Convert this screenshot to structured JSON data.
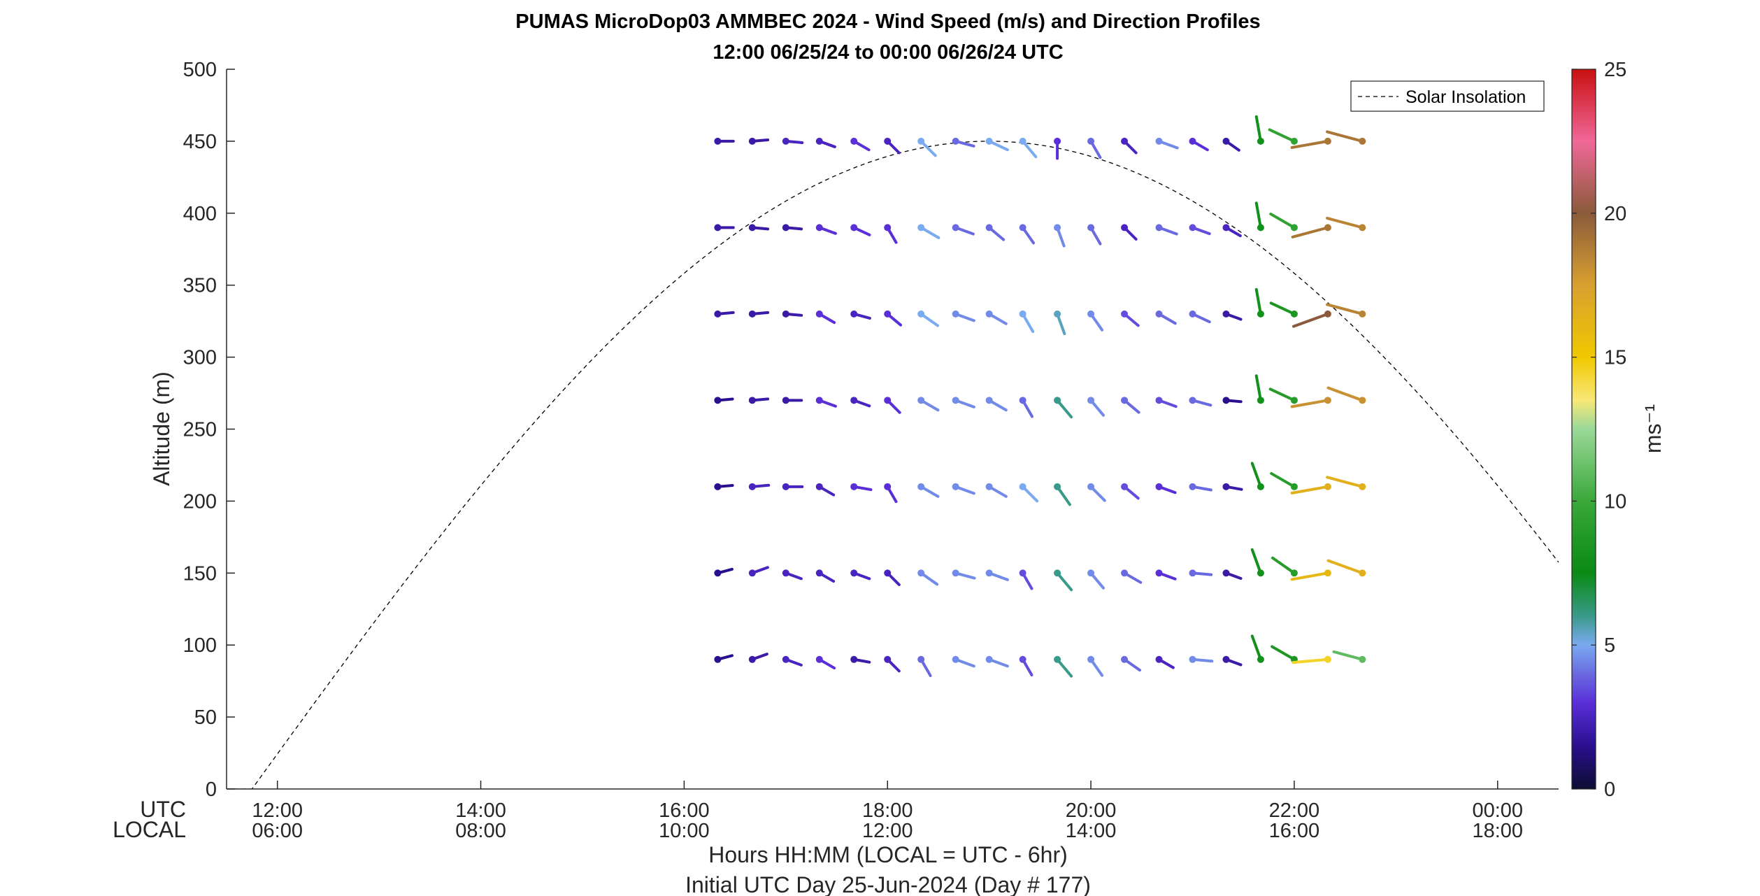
{
  "chart_data": {
    "type": "wind-profile",
    "title": "PUMAS MicroDop03 AMMBEC 2024 - Wind Speed (m/s) and Direction Profiles",
    "subtitle": "12:00 06/25/24 to 00:00 06/26/24  UTC",
    "ylabel": "Altitude (m)",
    "ylim": [
      0,
      500
    ],
    "yticks": [
      0,
      50,
      100,
      150,
      200,
      250,
      300,
      350,
      400,
      450,
      500
    ],
    "xlim_hours": [
      11.5,
      24.6
    ],
    "xticks": [
      {
        "hour": 12,
        "utc": "12:00",
        "local": "06:00"
      },
      {
        "hour": 14,
        "utc": "14:00",
        "local": "08:00"
      },
      {
        "hour": 16,
        "utc": "16:00",
        "local": "10:00"
      },
      {
        "hour": 18,
        "utc": "18:00",
        "local": "12:00"
      },
      {
        "hour": 20,
        "utc": "20:00",
        "local": "14:00"
      },
      {
        "hour": 22,
        "utc": "22:00",
        "local": "16:00"
      },
      {
        "hour": 24,
        "utc": "00:00",
        "local": "18:00"
      }
    ],
    "row_label_utc": "UTC",
    "row_label_local": "LOCAL",
    "xlabel": "Hours HH:MM  (LOCAL = UTC - 6hr)",
    "xlabel2": "Initial UTC Day 25-Jun-2024 (Day # 177)",
    "legend": {
      "label": "Solar Insolation",
      "placement": "top-right"
    },
    "solar_insolation_curve": {
      "start_hour": 11.75,
      "peak_hour": 19.0,
      "peak_altitude": 450
    },
    "colorbar": {
      "label": "ms⁻¹",
      "range": [
        0,
        25
      ],
      "ticks": [
        0,
        5,
        10,
        15,
        20,
        25
      ],
      "stops": [
        {
          "v": 0,
          "c": "#0d0d33"
        },
        {
          "v": 1.5,
          "c": "#2a0f8f"
        },
        {
          "v": 3,
          "c": "#5a2fd8"
        },
        {
          "v": 4,
          "c": "#6a6ae0"
        },
        {
          "v": 5,
          "c": "#7aaaf0"
        },
        {
          "v": 6,
          "c": "#3a9a8a"
        },
        {
          "v": 7.5,
          "c": "#0a8a14"
        },
        {
          "v": 10,
          "c": "#3aa83a"
        },
        {
          "v": 12.5,
          "c": "#9ad898"
        },
        {
          "v": 13.5,
          "c": "#f8e878"
        },
        {
          "v": 15,
          "c": "#f0c800"
        },
        {
          "v": 17.5,
          "c": "#d8a030"
        },
        {
          "v": 20,
          "c": "#8a5a3a"
        },
        {
          "v": 22.5,
          "c": "#f06898"
        },
        {
          "v": 25,
          "c": "#c81010"
        }
      ]
    },
    "altitudes": [
      90,
      150,
      210,
      270,
      330,
      390,
      450
    ],
    "profiles": [
      {
        "hour": 16.33,
        "speed": [
          1.5,
          1.5,
          1.5,
          1.5,
          2.0,
          2.0,
          2.0
        ],
        "dir_deg": [
          255,
          255,
          265,
          265,
          265,
          270,
          270
        ]
      },
      {
        "hour": 16.67,
        "speed": [
          2.0,
          2.5,
          2.5,
          2.0,
          2.0,
          2.0,
          2.0
        ],
        "dir_deg": [
          250,
          250,
          265,
          265,
          265,
          275,
          265
        ]
      },
      {
        "hour": 17.0,
        "speed": [
          2.5,
          2.5,
          2.5,
          2.0,
          2.0,
          2.0,
          2.5
        ],
        "dir_deg": [
          290,
          290,
          270,
          270,
          275,
          275,
          275
        ]
      },
      {
        "hour": 17.33,
        "speed": [
          3.0,
          2.5,
          2.5,
          3.0,
          3.0,
          3.0,
          2.5
        ],
        "dir_deg": [
          300,
          300,
          300,
          290,
          300,
          290,
          290
        ]
      },
      {
        "hour": 17.67,
        "speed": [
          2.0,
          2.5,
          3.0,
          2.5,
          2.5,
          3.0,
          3.0
        ],
        "dir_deg": [
          280,
          290,
          280,
          290,
          285,
          295,
          300
        ]
      },
      {
        "hour": 18.0,
        "speed": [
          2.5,
          2.5,
          3.0,
          3.0,
          3.0,
          3.0,
          2.5
        ],
        "dir_deg": [
          315,
          315,
          330,
          315,
          310,
          330,
          315
        ]
      },
      {
        "hour": 18.33,
        "speed": [
          4.0,
          4.5,
          4.5,
          4.5,
          5.0,
          5.0,
          5.0
        ],
        "dir_deg": [
          330,
          305,
          300,
          300,
          305,
          300,
          315
        ]
      },
      {
        "hour": 18.67,
        "speed": [
          4.5,
          4.5,
          4.5,
          4.5,
          4.5,
          4.0,
          4.0
        ],
        "dir_deg": [
          290,
          285,
          290,
          290,
          290,
          290,
          285
        ]
      },
      {
        "hour": 19.0,
        "speed": [
          4.5,
          4.5,
          4.5,
          4.5,
          4.5,
          4.0,
          5.0
        ],
        "dir_deg": [
          290,
          290,
          300,
          300,
          300,
          310,
          295
        ]
      },
      {
        "hour": 19.33,
        "speed": [
          3.5,
          3.5,
          5.0,
          4.0,
          5.0,
          4.0,
          5.0
        ],
        "dir_deg": [
          330,
          330,
          315,
          330,
          330,
          325,
          320
        ]
      },
      {
        "hour": 19.67,
        "speed": [
          6.0,
          6.0,
          6.0,
          6.0,
          5.5,
          4.5,
          3.0
        ],
        "dir_deg": [
          320,
          320,
          325,
          320,
          340,
          340,
          0
        ]
      },
      {
        "hour": 20.0,
        "speed": [
          4.5,
          4.5,
          4.5,
          4.5,
          4.5,
          4.0,
          4.0
        ],
        "dir_deg": [
          325,
          320,
          315,
          320,
          325,
          330,
          330
        ]
      },
      {
        "hour": 20.33,
        "speed": [
          4.0,
          4.0,
          3.5,
          4.0,
          3.5,
          2.5,
          2.5
        ],
        "dir_deg": [
          305,
          300,
          310,
          310,
          310,
          315,
          315
        ]
      },
      {
        "hour": 20.67,
        "speed": [
          2.5,
          3.0,
          3.0,
          3.5,
          4.0,
          4.0,
          4.5
        ],
        "dir_deg": [
          300,
          290,
          290,
          290,
          300,
          290,
          290
        ]
      },
      {
        "hour": 21.0,
        "speed": [
          4.5,
          4.0,
          4.0,
          4.0,
          4.0,
          3.5,
          3.0
        ],
        "dir_deg": [
          275,
          275,
          280,
          285,
          295,
          290,
          300
        ]
      },
      {
        "hour": 21.33,
        "speed": [
          2.0,
          2.0,
          2.0,
          1.5,
          2.0,
          2.5,
          2.0
        ],
        "dir_deg": [
          290,
          290,
          280,
          275,
          290,
          300,
          305
        ]
      },
      {
        "hour": 21.67,
        "speed": [
          8.0,
          8.0,
          8.0,
          8.0,
          8.0,
          8.0,
          8.0
        ],
        "dir_deg": [
          160,
          160,
          160,
          170,
          170,
          170,
          170
        ]
      },
      {
        "hour": 22.0,
        "speed": [
          8.5,
          9.0,
          9.0,
          9.0,
          8.5,
          9.5,
          9.5
        ],
        "dir_deg": [
          120,
          125,
          120,
          115,
          115,
          120,
          115
        ]
      },
      {
        "hour": 22.33,
        "speed": [
          14.5,
          16.0,
          16.5,
          18.0,
          20.0,
          19.0,
          19.0
        ],
        "dir_deg": [
          85,
          80,
          80,
          80,
          70,
          75,
          80
        ]
      },
      {
        "hour": 22.67,
        "speed": [
          11.0,
          16.5,
          16.5,
          18.0,
          18.5,
          18.5,
          19.0
        ],
        "dir_deg": [
          105,
          110,
          105,
          110,
          105,
          105,
          105
        ]
      }
    ]
  }
}
